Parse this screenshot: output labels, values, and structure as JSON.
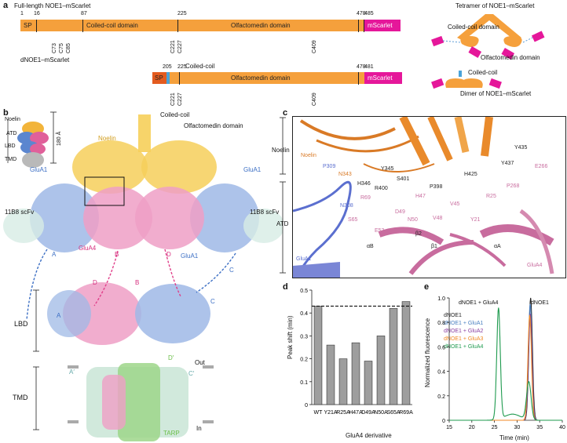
{
  "panel_a": {
    "label": "a",
    "full_title": "Full-length NOE1–mScarlet",
    "full_numbers": [
      "1",
      "16",
      "87",
      "225",
      "478",
      "485"
    ],
    "full_sp": "SP",
    "full_cc": "Coiled-coil domain",
    "full_olf": "Olfactomedin domain",
    "full_mscarlet": "mScarlet",
    "full_cys": [
      "C73",
      "C75",
      "C85",
      "C221",
      "C227",
      "C409"
    ],
    "tetramer_title": "Tetramer of NOE1–mScarlet",
    "tetramer_cc": "Coiled-coil domain",
    "tetramer_olf": "Olfactomedin domain",
    "d_title": "dNOE1–mScarlet",
    "d_numbers": [
      "205",
      "225",
      "478",
      "481"
    ],
    "d_sp": "SP",
    "d_cc_label": "Coiled-coil",
    "d_olf": "Olfactomedin domain",
    "d_mscarlet": "mScarlet",
    "d_cys": [
      "C221",
      "C227",
      "C409"
    ],
    "dimer_title": "Dimer of NOE1–mScarlet",
    "dimer_cc": "Coiled-coil"
  },
  "panel_b": {
    "label": "b",
    "legend": [
      "Noelin",
      "ATD",
      "LBD",
      "TMD"
    ],
    "scale": "180 Å",
    "noelin": "Noelin",
    "coiled_coil": "Coiled-coil",
    "olfactomedin": "Olfactomedin domain",
    "glua1_left": "GluA1",
    "glua1_right": "GluA1",
    "scfv_left": "11B8 scFv",
    "scfv_right": "11B8 scFv",
    "glua4": "GluA4",
    "glua1_mid": "GluA1",
    "letters": [
      "A",
      "B",
      "D",
      "C",
      "B",
      "D",
      "A",
      "C"
    ],
    "lbd": "LBD",
    "tmd": "TMD",
    "out": "Out",
    "in": "In",
    "tarp": "TARP",
    "a_prime": "A′",
    "c_prime": "C′",
    "d_prime": "D′"
  },
  "panel_c": {
    "label": "c",
    "side_noelin": "Noelin",
    "side_atd": "ATD",
    "labels": [
      "Noelin",
      "Y345",
      "N343",
      "H346",
      "S401",
      "R400",
      "P398",
      "H425",
      "Y437",
      "Y435",
      "E266",
      "P309",
      "N308",
      "R69",
      "H47",
      "V45",
      "R25",
      "P268",
      "S65",
      "D49",
      "N50",
      "V48",
      "Y21",
      "E52",
      "β2",
      "β1",
      "αB",
      "αA",
      "GluA1",
      "GluA4"
    ]
  },
  "panel_d": {
    "label": "d",
    "ylabel": "Peak shift (min)",
    "xlabel": "GluA4 derivative"
  },
  "panel_e": {
    "label": "e",
    "ylabel": "Normalized fluorescence",
    "xlabel": "Time (min)",
    "annot_left": "dNOE1 + GluA4",
    "annot_right": "dNOE1",
    "legend": [
      {
        "name": "dNOE1",
        "color": "#222222"
      },
      {
        "name": "dNOE1 + GluA1",
        "color": "#4a7fc0"
      },
      {
        "name": "dNOE1 + GluA2",
        "color": "#8a3fa0"
      },
      {
        "name": "dNOE1 + GluA3",
        "color": "#f08a24"
      },
      {
        "name": "dNOE1 + GluA4",
        "color": "#1e9a4e"
      }
    ]
  },
  "chart_data": [
    {
      "type": "bar",
      "categories": [
        "WT",
        "Y21A",
        "R25A",
        "H47A",
        "D49A",
        "N50A",
        "S65A",
        "R69A"
      ],
      "values": [
        0.43,
        0.26,
        0.2,
        0.27,
        0.19,
        0.3,
        0.42,
        0.45
      ],
      "ylim": [
        0,
        0.5
      ],
      "yticks": [
        "0",
        "0.1",
        "0.2",
        "0.3",
        "0.4",
        "0.5"
      ],
      "reference_line": 0.43,
      "xlabel": "GluA4 derivative",
      "ylabel": "Peak shift (min)"
    },
    {
      "type": "line",
      "xlim": [
        15,
        40
      ],
      "ylim": [
        0,
        1.0
      ],
      "xticks": [
        "15",
        "20",
        "25",
        "30",
        "35",
        "40"
      ],
      "yticks": [
        "0",
        "0.2",
        "0.4",
        "0.6",
        "0.8",
        "1.0"
      ],
      "xlabel": "Time (min)",
      "ylabel": "Normalized fluorescence",
      "series": [
        {
          "name": "dNOE1",
          "peak_x": 33.0,
          "peak_y": 1.0
        },
        {
          "name": "dNOE1 + GluA1",
          "peak_x": 32.9,
          "peak_y": 0.95
        },
        {
          "name": "dNOE1 + GluA2",
          "peak_x": 32.9,
          "peak_y": 0.87
        },
        {
          "name": "dNOE1 + GluA3",
          "peak_x": 32.8,
          "peak_y": 0.86
        },
        {
          "name": "dNOE1 + GluA4",
          "peak_x": 25.9,
          "peak_y": 0.91,
          "peak2_x": 32.6,
          "peak2_y": 0.31
        }
      ]
    }
  ]
}
